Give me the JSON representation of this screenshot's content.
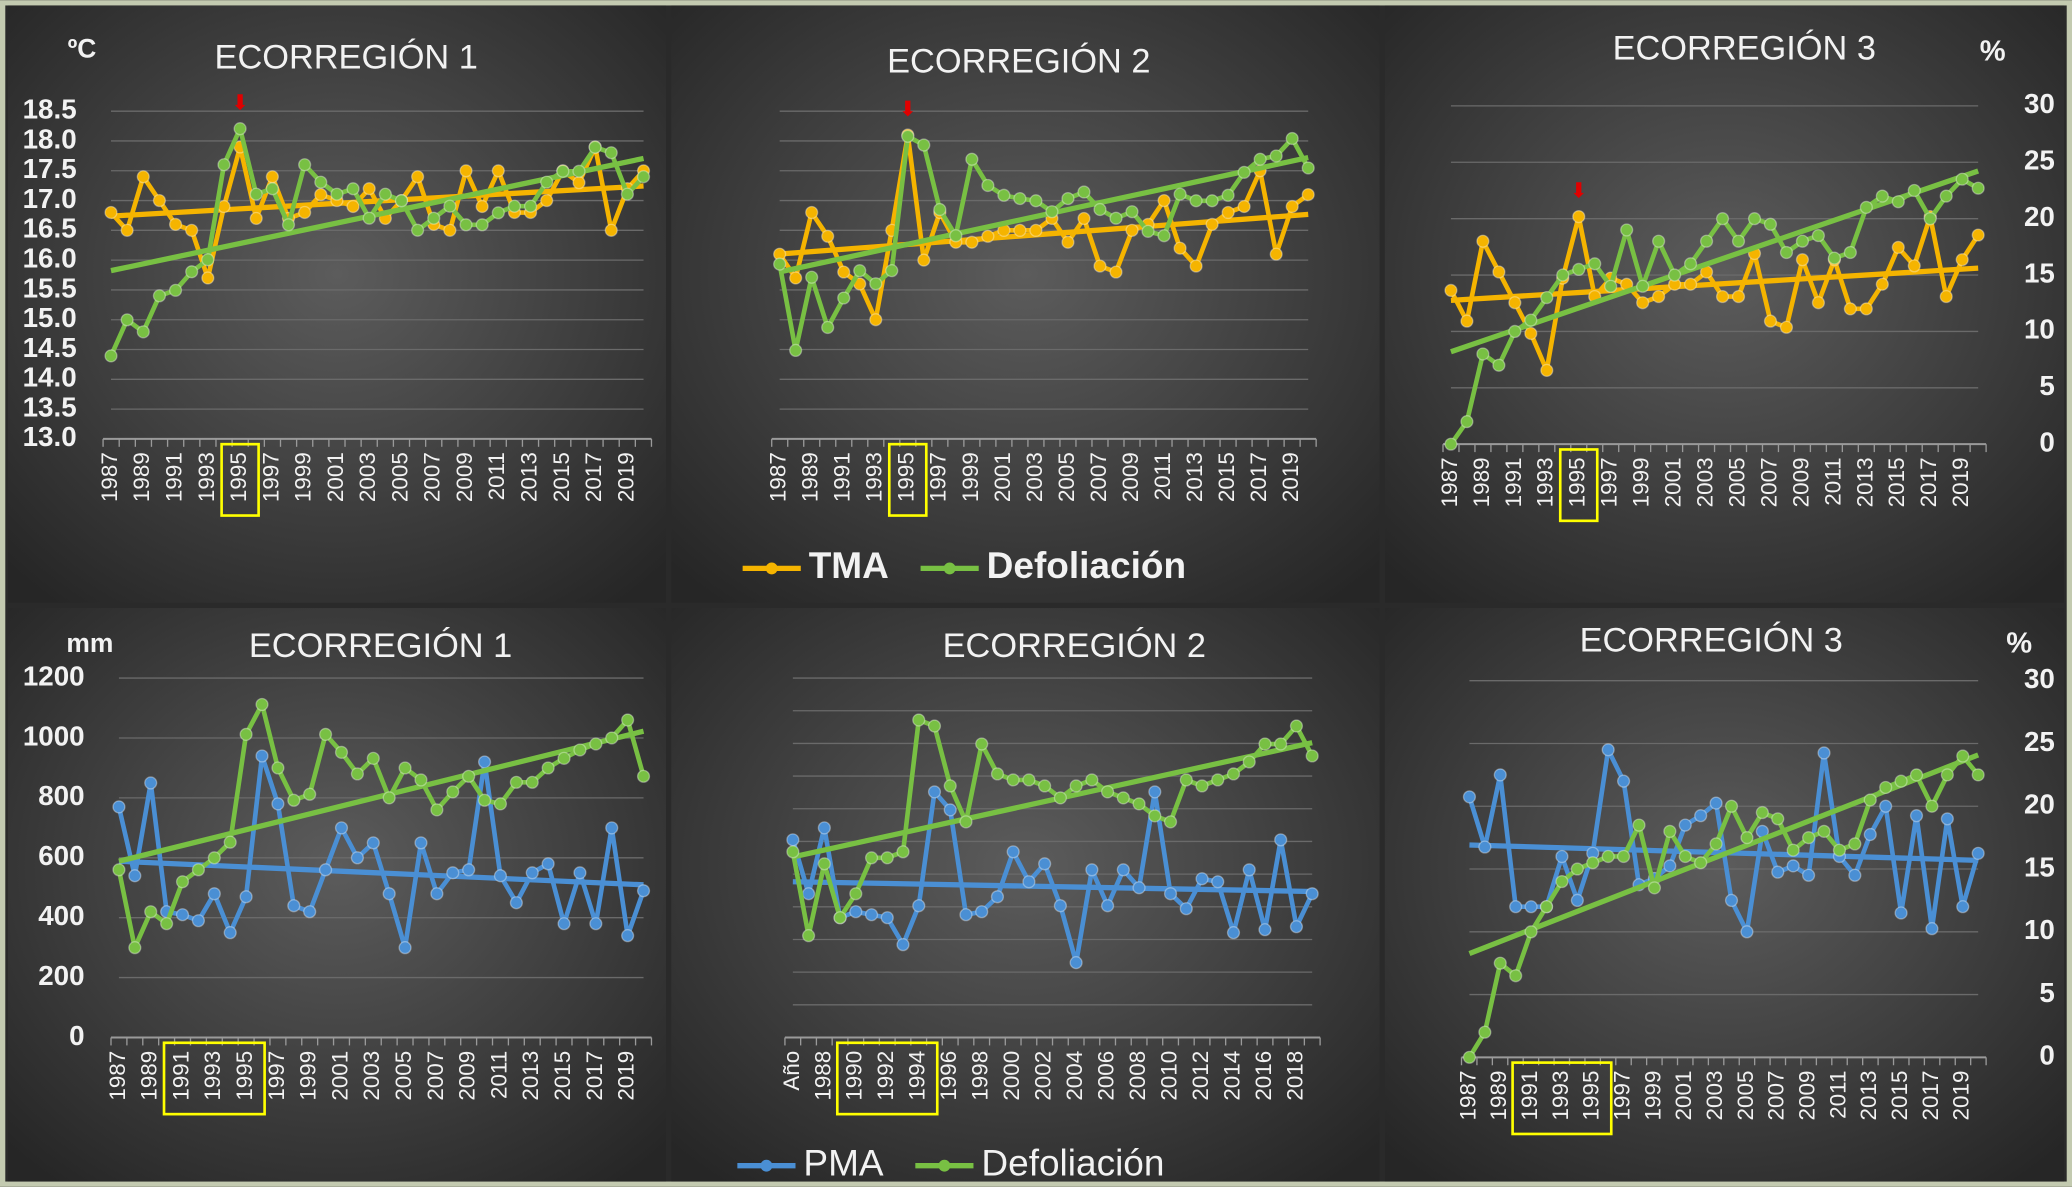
{
  "chart_data": [
    {
      "type": "line",
      "title": "ECORREGIÓN 1",
      "ylabel": "ºC",
      "categories": [
        "1987",
        null,
        "1989",
        null,
        "1991",
        null,
        "1993",
        null,
        "1995",
        null,
        "1997",
        null,
        "1999",
        null,
        "2001",
        null,
        "2003",
        null,
        "2005",
        null,
        "2007",
        null,
        "2009",
        null,
        "2011",
        null,
        "2013",
        null,
        "2015",
        null,
        "2017",
        null,
        "2019",
        null
      ],
      "ylim": [
        13,
        18.5
      ],
      "yticks": [
        {
          "value": 13,
          "label": "13.0"
        },
        13.5,
        {
          "value": 14,
          "label": "14.0"
        },
        14.5,
        {
          "value": 15,
          "label": "15.0"
        },
        15.5,
        {
          "value": 16,
          "label": "16.0"
        },
        16.5,
        {
          "value": 17,
          "label": "17.0"
        },
        17.5,
        {
          "value": 18,
          "label": "18.0"
        },
        18.5
      ],
      "y2lim": [
        0,
        30
      ],
      "grid": true,
      "trendline": true,
      "series": [
        {
          "name": "TMA",
          "color": "#f5b400",
          "values": [
            16.8,
            16.5,
            17.4,
            17.0,
            16.6,
            16.5,
            15.7,
            16.9,
            17.9,
            16.7,
            17.4,
            16.7,
            16.8,
            17.1,
            17.0,
            16.9,
            17.2,
            16.7,
            17.0,
            17.4,
            16.6,
            16.5,
            17.5,
            16.9,
            17.5,
            16.8,
            16.8,
            17.0,
            17.5,
            17.3,
            17.9,
            16.5,
            17.2,
            17.5
          ]
        },
        {
          "name": "Defoliación",
          "color": "#78c043",
          "axis": "y2",
          "values": [
            7.6,
            10.9,
            9.8,
            13.1,
            13.6,
            15.3,
            16.4,
            25.1,
            28.4,
            22.4,
            22.9,
            19.6,
            25.1,
            23.5,
            22.4,
            22.9,
            20.2,
            22.4,
            21.8,
            19.1,
            20.2,
            21.3,
            19.6,
            19.6,
            20.7,
            21.3,
            21.3,
            23.5,
            24.5,
            24.5,
            26.7,
            26.2,
            22.4,
            24.0
          ]
        }
      ]
    },
    {
      "type": "line",
      "title": "ECORREGIÓN 2",
      "categories": [
        "1987",
        null,
        "1989",
        null,
        "1991",
        null,
        "1993",
        null,
        "1995",
        null,
        "1997",
        null,
        "1999",
        null,
        "2001",
        null,
        "2003",
        null,
        "2005",
        null,
        "2007",
        null,
        "2009",
        null,
        "2011",
        null,
        "2013",
        null,
        "2015",
        null,
        "2017",
        null,
        "2019",
        null
      ],
      "ylim": [
        13,
        18.5
      ],
      "y2lim": [
        0,
        30
      ],
      "grid": true,
      "trendline": true,
      "legend": "bottom",
      "series": [
        {
          "name": "TMA",
          "color": "#f5b400",
          "values": [
            16.1,
            15.7,
            16.8,
            16.4,
            15.8,
            15.6,
            15.0,
            16.5,
            18.1,
            16.0,
            16.8,
            16.3,
            16.3,
            16.4,
            16.5,
            16.5,
            16.5,
            16.7,
            16.3,
            16.7,
            15.9,
            15.8,
            16.5,
            16.6,
            17.0,
            16.2,
            15.9,
            16.6,
            16.8,
            16.9,
            17.5,
            16.1,
            16.9,
            17.1
          ]
        },
        {
          "name": "Defoliación",
          "color": "#78c043",
          "axis": "y2",
          "values": [
            16.0,
            8.1,
            14.8,
            10.2,
            12.9,
            15.4,
            14.2,
            15.4,
            27.7,
            26.9,
            21.0,
            18.6,
            25.6,
            23.2,
            22.3,
            22.0,
            21.8,
            20.8,
            22.0,
            22.6,
            21.0,
            20.2,
            20.8,
            19.0,
            18.6,
            22.4,
            21.8,
            21.8,
            22.3,
            24.4,
            25.6,
            25.9,
            27.5,
            24.8
          ]
        }
      ]
    },
    {
      "type": "line",
      "title": "ECORREGIÓN 3",
      "y2label": "%",
      "categories": [
        "1987",
        null,
        "1989",
        null,
        "1991",
        null,
        "1993",
        null,
        "1995",
        null,
        "1997",
        null,
        "1999",
        null,
        "2001",
        null,
        "2003",
        null,
        "2005",
        null,
        "2007",
        null,
        "2009",
        null,
        "2011",
        null,
        "2013",
        null,
        "2015",
        null,
        "2017",
        null,
        "2019",
        null
      ],
      "ylim": [
        13,
        18.5
      ],
      "y2lim": [
        0,
        30
      ],
      "y2ticks": [
        0,
        5,
        10,
        15,
        20,
        25,
        30
      ],
      "grid": true,
      "trendline": true,
      "series": [
        {
          "name": "TMA",
          "color": "#f5b400",
          "values": [
            15.5,
            15.0,
            16.3,
            15.8,
            15.3,
            14.8,
            14.2,
            15.7,
            16.7,
            15.4,
            15.7,
            15.6,
            15.3,
            15.4,
            15.6,
            15.6,
            15.8,
            15.4,
            15.4,
            16.1,
            15.0,
            14.9,
            16.0,
            15.3,
            16.0,
            15.2,
            15.2,
            15.6,
            16.2,
            15.9,
            16.7,
            15.4,
            16.0,
            16.4
          ]
        },
        {
          "name": "Defoliación",
          "color": "#78c043",
          "axis": "y2",
          "values": [
            0,
            2,
            8,
            7,
            10,
            11,
            13,
            15,
            15.5,
            16,
            14,
            19,
            14,
            18,
            15,
            16,
            18,
            20,
            18,
            20,
            19.5,
            17,
            18,
            18.5,
            16.5,
            17,
            21,
            22,
            21.5,
            22.5,
            20,
            22,
            23.5,
            22.7
          ]
        }
      ]
    },
    {
      "type": "line",
      "title": "ECORREGIÓN 1",
      "ylabel": "mm",
      "categories": [
        "1987",
        null,
        "1989",
        null,
        "1991",
        null,
        "1993",
        null,
        "1995",
        null,
        "1997",
        null,
        "1999",
        null,
        "2001",
        null,
        "2003",
        null,
        "2005",
        null,
        "2007",
        null,
        "2009",
        null,
        "2011",
        null,
        "2013",
        null,
        "2015",
        null,
        "2017",
        null,
        "2019",
        null
      ],
      "ylim": [
        0,
        1200
      ],
      "yticks": [
        0,
        200,
        400,
        600,
        800,
        1000,
        1200
      ],
      "y2lim": [
        0,
        30
      ],
      "grid": true,
      "trendline": true,
      "series": [
        {
          "name": "PMA",
          "color": "#4a8fd4",
          "values": [
            770,
            540,
            850,
            420,
            410,
            390,
            480,
            350,
            470,
            940,
            780,
            440,
            420,
            560,
            700,
            600,
            650,
            480,
            300,
            650,
            480,
            550,
            560,
            920,
            540,
            450,
            550,
            580,
            380,
            550,
            380,
            700,
            340,
            490
          ]
        },
        {
          "name": "Defoliación",
          "color": "#78c043",
          "axis": "y2",
          "values": [
            14,
            7.5,
            10.5,
            9.5,
            13,
            14,
            15,
            16.3,
            25.3,
            27.8,
            22.5,
            19.8,
            20.3,
            25.3,
            23.8,
            22,
            23.3,
            20,
            22.5,
            21.5,
            19,
            20.5,
            21.8,
            19.8,
            19.5,
            21.3,
            21.3,
            22.5,
            23.3,
            24,
            24.5,
            25,
            26.5,
            21.8
          ]
        }
      ]
    },
    {
      "type": "line",
      "title": "ECORREGIÓN 2",
      "categories": [
        "Año",
        null,
        "1988",
        null,
        "1990",
        null,
        "1992",
        null,
        "1994",
        null,
        "1996",
        null,
        "1998",
        null,
        "2000",
        null,
        "2002",
        null,
        "2004",
        null,
        "2006",
        null,
        "2008",
        null,
        "2010",
        null,
        "2012",
        null,
        "2014",
        null,
        "2016",
        null,
        "2018",
        null
      ],
      "ylim": [
        0,
        1200
      ],
      "y2lim": [
        0,
        30
      ],
      "grid": true,
      "trendline": true,
      "legend": "bottom",
      "series": [
        {
          "name": "PMA",
          "color": "#4a8fd4",
          "values": [
            660,
            480,
            700,
            400,
            420,
            410,
            400,
            310,
            440,
            820,
            760,
            410,
            420,
            470,
            620,
            520,
            580,
            440,
            250,
            560,
            440,
            560,
            500,
            820,
            480,
            430,
            530,
            520,
            350,
            560,
            360,
            660,
            370,
            480
          ]
        },
        {
          "name": "Defoliación",
          "color": "#78c043",
          "axis": "y2",
          "values": [
            15.5,
            8.5,
            14.5,
            10,
            12,
            15,
            15,
            15.5,
            26.5,
            26,
            21,
            18,
            24.5,
            22,
            21.5,
            21.5,
            21,
            20,
            21,
            21.5,
            20.5,
            20,
            19.5,
            18.5,
            18,
            21.5,
            21,
            21.5,
            22,
            23,
            24.5,
            24.5,
            26,
            23.5
          ]
        }
      ]
    },
    {
      "type": "line",
      "title": "ECORREGIÓN 3",
      "y2label": "%",
      "categories": [
        "1987",
        null,
        "1989",
        null,
        "1991",
        null,
        "1993",
        null,
        "1995",
        null,
        "1997",
        null,
        "1999",
        null,
        "2001",
        null,
        "2003",
        null,
        "2005",
        null,
        "2007",
        null,
        "2009",
        null,
        "2011",
        null,
        "2013",
        null,
        "2015",
        null,
        "2017",
        null,
        "2019",
        null
      ],
      "ylim": [
        0,
        1200
      ],
      "y2lim": [
        0,
        30
      ],
      "y2ticks": [
        0,
        5,
        10,
        15,
        20,
        25,
        30
      ],
      "grid": true,
      "trendline": true,
      "series": [
        {
          "name": "PMA",
          "color": "#4a8fd4",
          "values": [
            830,
            670,
            900,
            480,
            480,
            480,
            640,
            500,
            650,
            980,
            880,
            550,
            570,
            610,
            740,
            770,
            810,
            500,
            400,
            720,
            590,
            610,
            580,
            970,
            640,
            580,
            710,
            800,
            460,
            770,
            410,
            760,
            480,
            650
          ]
        },
        {
          "name": "Defoliación",
          "color": "#78c043",
          "axis": "y2",
          "values": [
            0,
            2,
            7.5,
            6.5,
            10,
            12,
            14,
            15,
            15.5,
            16,
            16,
            18.5,
            13.5,
            18,
            16,
            15.5,
            17,
            20,
            17.5,
            19.5,
            19,
            16.5,
            17.5,
            18,
            16.5,
            17,
            20.5,
            21.5,
            22,
            22.5,
            20,
            22.5,
            24,
            22.5
          ]
        }
      ]
    }
  ]
}
